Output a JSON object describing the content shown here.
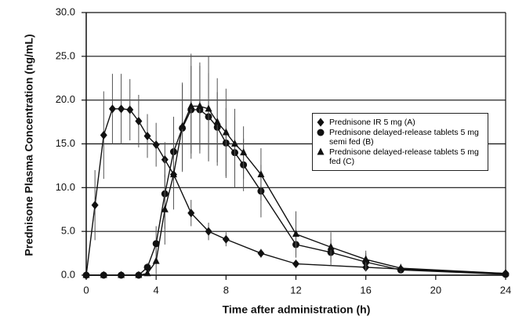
{
  "chart_data": {
    "type": "line",
    "x_label": "Time after administration (h)",
    "y_label": "Prednisone Plasma Concentration (ng/mL)",
    "xlim": [
      0,
      24
    ],
    "xticks": [
      0,
      4,
      8,
      12,
      16,
      20,
      24
    ],
    "ylim": [
      0,
      30
    ],
    "yticks": [
      {
        "value": 0,
        "label": "0.0"
      },
      {
        "value": 5,
        "label": "5.0"
      },
      {
        "value": 10,
        "label": "10.0"
      },
      {
        "value": 15,
        "label": "15.0"
      },
      {
        "value": 20,
        "label": "20.0"
      },
      {
        "value": 25,
        "label": "25.0"
      },
      {
        "value": 30,
        "label": "30.0"
      }
    ],
    "grid": true,
    "series": [
      {
        "name": "Prednisone IR 5 mg (A)",
        "color": "#111111",
        "marker": "diamond",
        "x": [
          0,
          0.5,
          1,
          1.5,
          2,
          2.5,
          3,
          3.5,
          4,
          4.5,
          5,
          6,
          7,
          8,
          10,
          12,
          16,
          18,
          24
        ],
        "values": [
          0,
          8.0,
          16.0,
          19.0,
          19.0,
          18.9,
          17.6,
          15.9,
          14.9,
          13.2,
          11.5,
          7.1,
          5.0,
          4.1,
          2.5,
          1.3,
          0.9,
          0.7,
          0.2
        ],
        "errors": [
          0,
          4,
          5,
          4,
          4,
          3.5,
          3,
          2.5,
          2.5,
          2,
          2,
          1.5,
          1,
          0.8,
          0.5,
          0.4,
          0.3,
          0.3,
          0.1
        ]
      },
      {
        "name": "Prednisone delayed-release tablets 5 mg semi fed (B)",
        "color": "#111111",
        "marker": "circle",
        "x": [
          0,
          1,
          2,
          3,
          3.5,
          4,
          4.5,
          5,
          5.5,
          6,
          6.5,
          7,
          7.5,
          8,
          8.5,
          9,
          10,
          12,
          14,
          16,
          18,
          24
        ],
        "values": [
          0,
          0,
          0,
          0,
          0.9,
          3.6,
          9.3,
          14.1,
          16.8,
          18.9,
          18.9,
          18.1,
          16.9,
          15.1,
          14.0,
          12.6,
          9.6,
          3.5,
          2.6,
          1.5,
          0.6,
          0.1
        ],
        "errors": [
          0,
          0,
          0,
          0,
          0.5,
          2,
          4,
          4,
          5,
          5,
          5,
          5,
          4,
          4,
          4,
          3,
          3,
          1.5,
          1.5,
          1,
          0.3,
          0.1
        ]
      },
      {
        "name": "Prednisone delayed-release tablets 5 mg fed (C)",
        "color": "#111111",
        "marker": "triangle",
        "x": [
          0,
          1,
          2,
          3,
          3.5,
          4,
          4.5,
          5,
          5.5,
          6,
          6.5,
          7,
          7.5,
          8,
          8.5,
          9,
          10,
          12,
          14,
          16,
          18,
          24
        ],
        "values": [
          0,
          0,
          0,
          0,
          0.2,
          1.6,
          7.5,
          11.5,
          17.0,
          19.3,
          19.3,
          19.0,
          17.5,
          16.3,
          15.0,
          14.0,
          11.5,
          4.7,
          3.2,
          1.8,
          0.8,
          0.2
        ],
        "errors": [
          0,
          0,
          0,
          0,
          0.3,
          1.5,
          4,
          4,
          5,
          6,
          5,
          6,
          5,
          5,
          4,
          3,
          3,
          2.6,
          1.7,
          1,
          0.5,
          0.1
        ]
      }
    ]
  }
}
